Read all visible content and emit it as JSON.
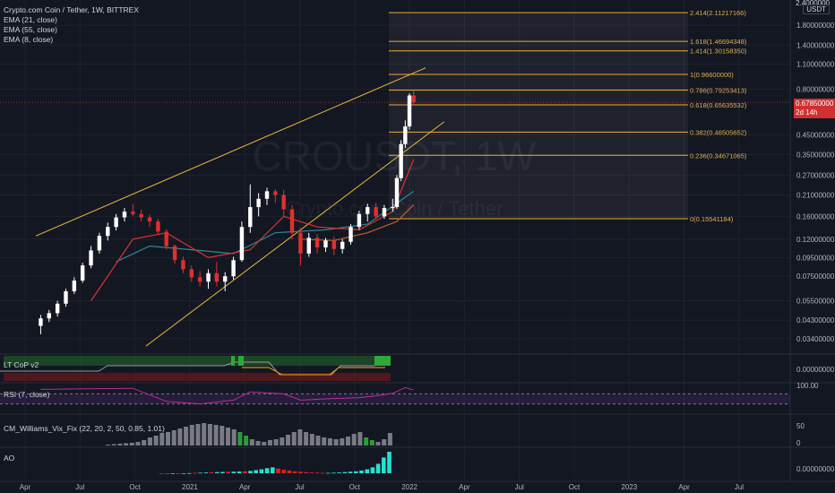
{
  "header": {
    "symbol_line": "Crypto.com Coin / Tether, 1W, BITTREX",
    "indicators": [
      "EMA (21, close)",
      "EMA (55, close)",
      "EMA (8, close)"
    ],
    "axis_unit": "USDT",
    "top_tick": "2.4000000"
  },
  "watermark": {
    "ticker": "CROUSDT, 1W",
    "name": "Crypto.com Coin / Tether"
  },
  "price_tag": {
    "value": "0.67850000",
    "countdown": "2d 14h"
  },
  "panes": {
    "ltcop": {
      "label": "LT CoP v2",
      "axis_value": "0.00000000"
    },
    "rsi": {
      "label": "RSI (7, close)",
      "axis_value": "100.00"
    },
    "vix": {
      "label": "CM_Williams_Vix_Fix (22, 20, 2, 50, 0.85, 1.01)",
      "axis_values": [
        "50",
        "0"
      ]
    },
    "ao": {
      "label": "AO",
      "axis_value": "0.00000000"
    }
  },
  "colors": {
    "background": "#131722",
    "up": "#ffffff",
    "down": "#e0302c",
    "fib": "#f0a830",
    "channel": "#e6b93a",
    "ema21": "#e03030",
    "ema55": "#2a8a9a",
    "ema8": "#c0602a",
    "rsi": "#c02aa0",
    "vix_gray": "#787b86",
    "vix_green": "#2e9a3a",
    "ao_up": "#26e0d0",
    "ao_down": "#e02020"
  },
  "chart_data": {
    "type": "candlestick",
    "title": "Crypto.com Coin / Tether, 1W, BITTREX",
    "yscale": "log",
    "price_axis_labels": [
      "2.4000000",
      "1.80000000",
      "1.40000000",
      "1.10000000",
      "0.80000000",
      "0.45000000",
      "0.35000000",
      "0.27000000",
      "0.21000000",
      "0.16000000",
      "0.12000000",
      "0.09500000",
      "0.07500000",
      "0.05500000",
      "0.04300000",
      "0.03400000"
    ],
    "time_axis_labels": [
      "Apr",
      "Jul",
      "Oct",
      "2021",
      "Apr",
      "Jul",
      "Oct",
      "2022",
      "Apr",
      "Jul",
      "Oct",
      "2023",
      "Apr",
      "Jul"
    ],
    "fibonacci": [
      {
        "label": "2.414(2.11217166)",
        "price": 2.11217166
      },
      {
        "label": "1.618(1.46694348)",
        "price": 1.46694348
      },
      {
        "label": "1.414(1.30158350)",
        "price": 1.3015835
      },
      {
        "label": "1(0.96600000)",
        "price": 0.966
      },
      {
        "label": "0.786(0.79253413)",
        "price": 0.79253413
      },
      {
        "label": "0.618(0.65635532)",
        "price": 0.65635532
      },
      {
        "label": "0.382(0.46505652)",
        "price": 0.46505652
      },
      {
        "label": "0.236(0.34671065)",
        "price": 0.34671065
      },
      {
        "label": "0(0.15541184)",
        "price": 0.15541184
      }
    ],
    "channel": {
      "upper": [
        {
          "date": "2020-03-01",
          "price": 0.125
        },
        {
          "date": "2021-12-12",
          "price": 1.05
        }
      ],
      "lower": [
        {
          "date": "2020-09-01",
          "price": 0.031
        },
        {
          "date": "2022-01-12",
          "price": 0.53
        }
      ]
    },
    "last_price": 0.6785,
    "candles": [
      {
        "date": "2020-03-09",
        "o": 0.04,
        "h": 0.046,
        "l": 0.036,
        "c": 0.044
      },
      {
        "date": "2020-03-23",
        "o": 0.044,
        "h": 0.049,
        "l": 0.042,
        "c": 0.047
      },
      {
        "date": "2020-04-06",
        "o": 0.047,
        "h": 0.055,
        "l": 0.045,
        "c": 0.053
      },
      {
        "date": "2020-04-20",
        "o": 0.053,
        "h": 0.064,
        "l": 0.051,
        "c": 0.062
      },
      {
        "date": "2020-05-04",
        "o": 0.062,
        "h": 0.074,
        "l": 0.06,
        "c": 0.071
      },
      {
        "date": "2020-05-18",
        "o": 0.071,
        "h": 0.089,
        "l": 0.069,
        "c": 0.086
      },
      {
        "date": "2020-06-01",
        "o": 0.086,
        "h": 0.11,
        "l": 0.083,
        "c": 0.104
      },
      {
        "date": "2020-06-15",
        "o": 0.104,
        "h": 0.13,
        "l": 0.1,
        "c": 0.125
      },
      {
        "date": "2020-06-29",
        "o": 0.125,
        "h": 0.148,
        "l": 0.118,
        "c": 0.14
      },
      {
        "date": "2020-07-13",
        "o": 0.14,
        "h": 0.165,
        "l": 0.134,
        "c": 0.158
      },
      {
        "date": "2020-07-27",
        "o": 0.158,
        "h": 0.178,
        "l": 0.15,
        "c": 0.17
      },
      {
        "date": "2020-08-10",
        "o": 0.17,
        "h": 0.188,
        "l": 0.16,
        "c": 0.165
      },
      {
        "date": "2020-08-24",
        "o": 0.165,
        "h": 0.175,
        "l": 0.15,
        "c": 0.158
      },
      {
        "date": "2020-09-07",
        "o": 0.158,
        "h": 0.164,
        "l": 0.14,
        "c": 0.15
      },
      {
        "date": "2020-09-21",
        "o": 0.15,
        "h": 0.155,
        "l": 0.128,
        "c": 0.132
      },
      {
        "date": "2020-10-05",
        "o": 0.132,
        "h": 0.136,
        "l": 0.105,
        "c": 0.11
      },
      {
        "date": "2020-10-19",
        "o": 0.11,
        "h": 0.112,
        "l": 0.088,
        "c": 0.092
      },
      {
        "date": "2020-11-02",
        "o": 0.092,
        "h": 0.096,
        "l": 0.078,
        "c": 0.082
      },
      {
        "date": "2020-11-16",
        "o": 0.082,
        "h": 0.086,
        "l": 0.07,
        "c": 0.074
      },
      {
        "date": "2020-11-30",
        "o": 0.074,
        "h": 0.08,
        "l": 0.066,
        "c": 0.07
      },
      {
        "date": "2020-12-14",
        "o": 0.07,
        "h": 0.082,
        "l": 0.064,
        "c": 0.078
      },
      {
        "date": "2020-12-28",
        "o": 0.078,
        "h": 0.09,
        "l": 0.066,
        "c": 0.07
      },
      {
        "date": "2021-01-11",
        "o": 0.07,
        "h": 0.079,
        "l": 0.062,
        "c": 0.075
      },
      {
        "date": "2021-01-25",
        "o": 0.075,
        "h": 0.096,
        "l": 0.072,
        "c": 0.092
      },
      {
        "date": "2021-02-08",
        "o": 0.092,
        "h": 0.15,
        "l": 0.09,
        "c": 0.14
      },
      {
        "date": "2021-02-22",
        "o": 0.14,
        "h": 0.24,
        "l": 0.13,
        "c": 0.18
      },
      {
        "date": "2021-03-08",
        "o": 0.18,
        "h": 0.215,
        "l": 0.16,
        "c": 0.2
      },
      {
        "date": "2021-03-22",
        "o": 0.2,
        "h": 0.23,
        "l": 0.185,
        "c": 0.22
      },
      {
        "date": "2021-04-05",
        "o": 0.22,
        "h": 0.226,
        "l": 0.19,
        "c": 0.21
      },
      {
        "date": "2021-04-19",
        "o": 0.21,
        "h": 0.224,
        "l": 0.16,
        "c": 0.175
      },
      {
        "date": "2021-05-03",
        "o": 0.175,
        "h": 0.185,
        "l": 0.12,
        "c": 0.13
      },
      {
        "date": "2021-05-17",
        "o": 0.13,
        "h": 0.138,
        "l": 0.086,
        "c": 0.1
      },
      {
        "date": "2021-05-31",
        "o": 0.1,
        "h": 0.13,
        "l": 0.096,
        "c": 0.122
      },
      {
        "date": "2021-06-14",
        "o": 0.122,
        "h": 0.128,
        "l": 0.1,
        "c": 0.108
      },
      {
        "date": "2021-06-28",
        "o": 0.108,
        "h": 0.122,
        "l": 0.102,
        "c": 0.118
      },
      {
        "date": "2021-07-12",
        "o": 0.118,
        "h": 0.124,
        "l": 0.098,
        "c": 0.106
      },
      {
        "date": "2021-07-26",
        "o": 0.106,
        "h": 0.12,
        "l": 0.1,
        "c": 0.116
      },
      {
        "date": "2021-08-09",
        "o": 0.116,
        "h": 0.145,
        "l": 0.112,
        "c": 0.14
      },
      {
        "date": "2021-08-23",
        "o": 0.14,
        "h": 0.172,
        "l": 0.135,
        "c": 0.165
      },
      {
        "date": "2021-09-06",
        "o": 0.165,
        "h": 0.188,
        "l": 0.15,
        "c": 0.18
      },
      {
        "date": "2021-09-20",
        "o": 0.18,
        "h": 0.19,
        "l": 0.155,
        "c": 0.16
      },
      {
        "date": "2021-10-04",
        "o": 0.16,
        "h": 0.185,
        "l": 0.155,
        "c": 0.178
      },
      {
        "date": "2021-10-18",
        "o": 0.178,
        "h": 0.2,
        "l": 0.17,
        "c": 0.18
      },
      {
        "date": "2021-10-25",
        "o": 0.18,
        "h": 0.27,
        "l": 0.176,
        "c": 0.26
      },
      {
        "date": "2021-11-01",
        "o": 0.26,
        "h": 0.42,
        "l": 0.25,
        "c": 0.4
      },
      {
        "date": "2021-11-08",
        "o": 0.4,
        "h": 0.54,
        "l": 0.38,
        "c": 0.5
      },
      {
        "date": "2021-11-15",
        "o": 0.5,
        "h": 0.76,
        "l": 0.48,
        "c": 0.74
      },
      {
        "date": "2021-11-22",
        "o": 0.74,
        "h": 0.79,
        "l": 0.65,
        "c": 0.6785
      }
    ],
    "ema21": [
      {
        "date": "2020-06-01",
        "v": 0.055
      },
      {
        "date": "2020-08-10",
        "v": 0.12
      },
      {
        "date": "2020-10-05",
        "v": 0.13
      },
      {
        "date": "2020-12-14",
        "v": 0.095
      },
      {
        "date": "2021-02-22",
        "v": 0.105
      },
      {
        "date": "2021-04-19",
        "v": 0.16
      },
      {
        "date": "2021-06-14",
        "v": 0.14
      },
      {
        "date": "2021-08-23",
        "v": 0.135
      },
      {
        "date": "2021-10-18",
        "v": 0.17
      },
      {
        "date": "2021-11-22",
        "v": 0.33
      }
    ],
    "ema55": [
      {
        "date": "2020-07-13",
        "v": 0.09
      },
      {
        "date": "2020-09-07",
        "v": 0.11
      },
      {
        "date": "2020-11-16",
        "v": 0.105
      },
      {
        "date": "2021-01-25",
        "v": 0.1
      },
      {
        "date": "2021-04-05",
        "v": 0.13
      },
      {
        "date": "2021-06-28",
        "v": 0.135
      },
      {
        "date": "2021-09-06",
        "v": 0.145
      },
      {
        "date": "2021-11-22",
        "v": 0.22
      }
    ],
    "ema8": [
      {
        "date": "2021-05-17",
        "v": 0.12
      },
      {
        "date": "2021-07-12",
        "v": 0.118
      },
      {
        "date": "2021-09-06",
        "v": 0.13
      },
      {
        "date": "2021-10-25",
        "v": 0.15
      },
      {
        "date": "2021-11-22",
        "v": 0.185
      }
    ],
    "rsi": [
      {
        "date": "2020-03-09",
        "v": 88
      },
      {
        "date": "2020-08-10",
        "v": 92
      },
      {
        "date": "2020-10-05",
        "v": 40
      },
      {
        "date": "2020-11-30",
        "v": 30
      },
      {
        "date": "2021-01-25",
        "v": 45
      },
      {
        "date": "2021-02-22",
        "v": 78
      },
      {
        "date": "2021-04-19",
        "v": 70
      },
      {
        "date": "2021-05-17",
        "v": 45
      },
      {
        "date": "2021-06-28",
        "v": 50
      },
      {
        "date": "2021-08-23",
        "v": 55
      },
      {
        "date": "2021-09-20",
        "v": 62
      },
      {
        "date": "2021-10-18",
        "v": 72
      },
      {
        "date": "2021-11-08",
        "v": 95
      },
      {
        "date": "2021-11-22",
        "v": 85
      }
    ],
    "vix_fix": [
      2,
      3,
      4,
      5,
      6,
      8,
      12,
      18,
      22,
      28,
      30,
      34,
      38,
      42,
      46,
      48,
      50,
      48,
      46,
      44,
      40,
      36,
      30,
      22,
      14,
      10,
      8,
      12,
      14,
      18,
      24,
      30,
      36,
      30,
      26,
      22,
      18,
      16,
      14,
      16,
      20,
      26,
      30,
      18,
      12,
      8,
      14,
      28
    ],
    "ao": [
      -1,
      -2,
      -2,
      -2,
      -1,
      1,
      2,
      3,
      4,
      5,
      6,
      7,
      8,
      8,
      9,
      10,
      12,
      16,
      20,
      26,
      30,
      24,
      18,
      14,
      10,
      8,
      6,
      4,
      3,
      2,
      2,
      3,
      4,
      6,
      8,
      10,
      14,
      20,
      30,
      48,
      80,
      110
    ]
  }
}
